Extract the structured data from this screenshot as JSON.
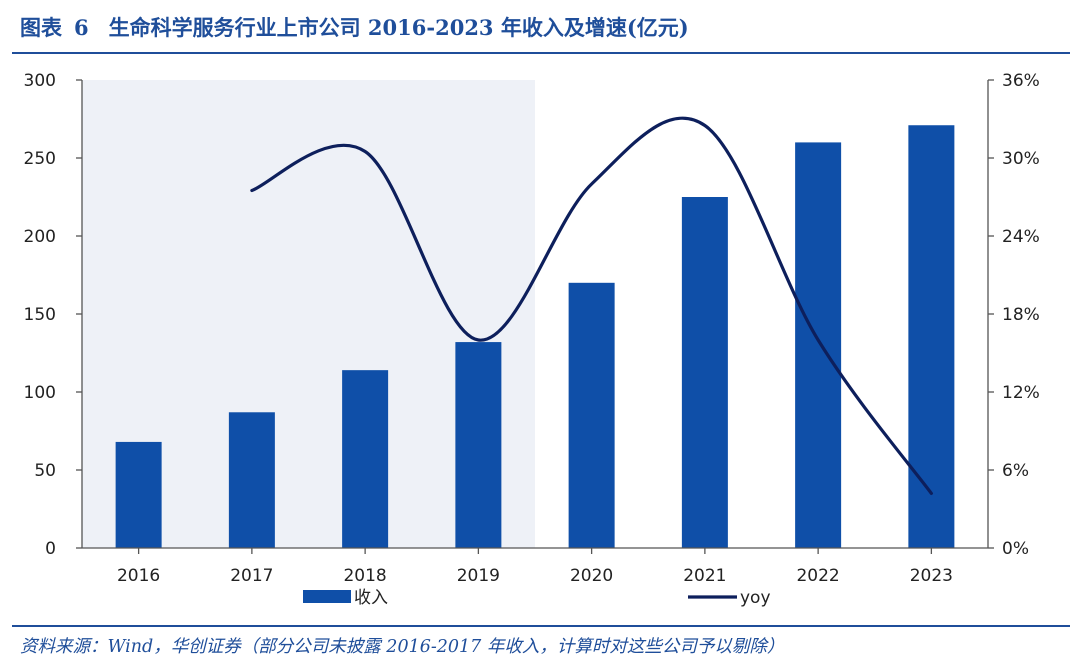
{
  "header": {
    "figure_label": "图表",
    "figure_number": "6",
    "title": "生命科学服务行业上市公司 2016-2023 年收入及增速(亿元)"
  },
  "footer": {
    "source": "资料来源：Wind，华创证券（部分公司未披露 2016-2017 年收入，计算时对这些公司予以剔除）"
  },
  "chart_data": {
    "type": "bar",
    "categories": [
      "2016",
      "2017",
      "2018",
      "2019",
      "2020",
      "2021",
      "2022",
      "2023"
    ],
    "series": [
      {
        "name": "收入",
        "type": "bar",
        "axis": "left",
        "color": "#0f4fa8",
        "values": [
          68,
          87,
          114,
          132,
          170,
          225,
          260,
          271
        ]
      },
      {
        "name": "yoy",
        "type": "line",
        "axis": "right",
        "color": "#0d1f5c",
        "values": [
          null,
          27.5,
          30.5,
          16.0,
          28.0,
          32.5,
          16.0,
          4.2
        ]
      }
    ],
    "left_axis": {
      "ylim": [
        0,
        300
      ],
      "ticks": [
        0,
        50,
        100,
        150,
        200,
        250,
        300
      ],
      "tick_labels": [
        "0",
        "50",
        "100",
        "150",
        "200",
        "250",
        "300"
      ]
    },
    "right_axis": {
      "ylim": [
        0,
        36
      ],
      "ticks": [
        0,
        6,
        12,
        18,
        24,
        30,
        36
      ],
      "tick_labels": [
        "0%",
        "6%",
        "12%",
        "18%",
        "24%",
        "30%",
        "36%"
      ]
    },
    "shaded_region": {
      "from_category": "2016",
      "to_category": "2019",
      "color": "#eef1f7"
    },
    "grid": false,
    "legend_position": "bottom"
  }
}
